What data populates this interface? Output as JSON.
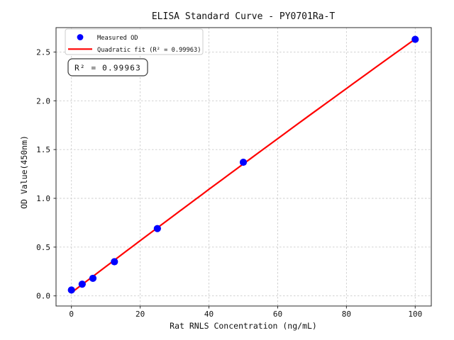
{
  "chart_data": {
    "type": "scatter",
    "title": "ELISA Standard Curve - PY0701Ra-T",
    "xlabel": "Rat RNLS Concentration (ng/mL)",
    "ylabel": "OD Value(450nm)",
    "x": [
      0,
      3.125,
      6.25,
      12.5,
      25,
      50,
      100
    ],
    "series": [
      {
        "name": "Measured OD",
        "type": "scatter",
        "color": "#0000ff",
        "values": [
          0.06,
          0.12,
          0.18,
          0.35,
          0.69,
          1.37,
          2.63
        ]
      },
      {
        "name": "Quadratic fit (R² = 0.99963)",
        "type": "line",
        "fit": "quadratic",
        "r_squared": 0.99963,
        "color": "#ff0000"
      }
    ],
    "annotation": "R² = 0.99963",
    "xticks": [
      0,
      20,
      40,
      60,
      80,
      100
    ],
    "xtick_labels": [
      "0",
      "20",
      "40",
      "60",
      "80",
      "100"
    ],
    "yticks": [
      0,
      0.5,
      1.0,
      1.5,
      2.0,
      2.5
    ],
    "ytick_labels": [
      "0.0",
      "0.5",
      "1.0",
      "1.5",
      "2.0",
      "2.5"
    ],
    "xlim": [
      -5,
      105
    ],
    "ylim": [
      -0.08,
      2.76
    ],
    "grid": true,
    "grid_style": "dashed",
    "legend_position": "upper left",
    "colors": {
      "grid": "#cccccc",
      "spine": "#2a2a2a",
      "background": "#ffffff",
      "marker": "#0000ff",
      "fit_line": "#ff0000"
    }
  }
}
